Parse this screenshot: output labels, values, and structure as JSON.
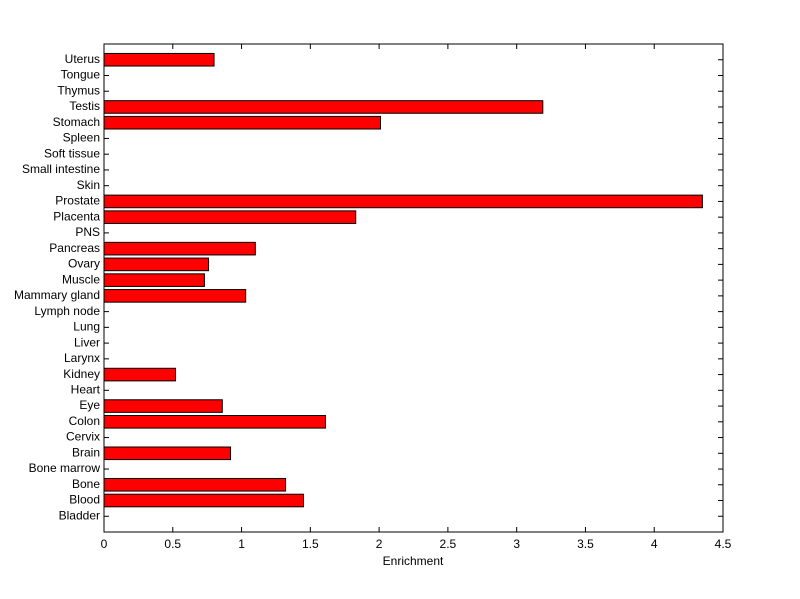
{
  "chart_data": {
    "type": "barh",
    "xlabel": "Enrichment",
    "categories": [
      "Bladder",
      "Blood",
      "Bone",
      "Bone marrow",
      "Brain",
      "Cervix",
      "Colon",
      "Eye",
      "Heart",
      "Kidney",
      "Larynx",
      "Liver",
      "Lung",
      "Lymph node",
      "Mammary gland",
      "Muscle",
      "Ovary",
      "Pancreas",
      "PNS",
      "Placenta",
      "Prostate",
      "Skin",
      "Small intestine",
      "Soft tissue",
      "Spleen",
      "Stomach",
      "Testis",
      "Thymus",
      "Tongue",
      "Uterus"
    ],
    "values": [
      0,
      1.45,
      1.32,
      0,
      0.92,
      0,
      1.61,
      0.86,
      0,
      0.52,
      0,
      0,
      0,
      0,
      1.03,
      0.73,
      0.76,
      1.1,
      0,
      1.83,
      4.35,
      0,
      0,
      0,
      0,
      2.01,
      3.19,
      0,
      0,
      0.8
    ],
    "color": "#ff0000",
    "xlim": [
      0,
      4.5
    ],
    "xticks": [
      0,
      0.5,
      1,
      1.5,
      2,
      2.5,
      3,
      3.5,
      4,
      4.5
    ]
  }
}
